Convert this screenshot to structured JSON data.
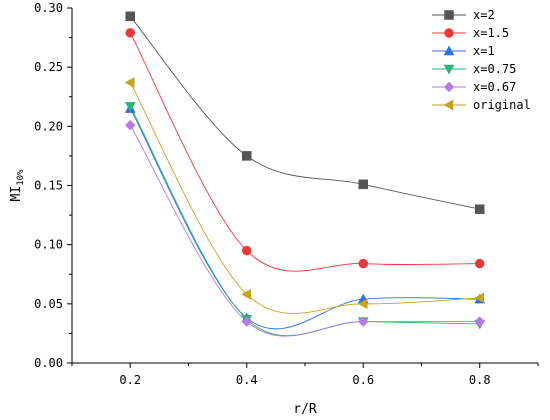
{
  "chart_data": {
    "type": "line",
    "xlabel": "r/R",
    "ylabel_main": "MI",
    "ylabel_sub": "10%",
    "x_ticks": [
      "0.2",
      "0.4",
      "0.6",
      "0.8"
    ],
    "y_ticks": [
      "0.00",
      "0.05",
      "0.10",
      "0.15",
      "0.20",
      "0.25",
      "0.30"
    ],
    "xlim": [
      0.1,
      0.9
    ],
    "ylim": [
      0.0,
      0.3
    ],
    "grid": false,
    "legend_position": "top-right",
    "x": [
      0.2,
      0.4,
      0.6,
      0.8
    ],
    "series": [
      {
        "name": "x=2",
        "marker": "square",
        "color": "#555555",
        "values": [
          0.293,
          0.175,
          0.151,
          0.13
        ]
      },
      {
        "name": "x=1.5",
        "marker": "circle",
        "color": "#e8393a",
        "values": [
          0.279,
          0.095,
          0.084,
          0.084
        ]
      },
      {
        "name": "x=1",
        "marker": "triangle-up",
        "color": "#2f6fd6",
        "values": [
          0.215,
          0.038,
          0.054,
          0.054
        ]
      },
      {
        "name": "x=0.75",
        "marker": "triangle-down",
        "color": "#2ab27f",
        "values": [
          0.217,
          0.037,
          0.035,
          0.033
        ]
      },
      {
        "name": "x=0.67",
        "marker": "diamond",
        "color": "#b57be0",
        "values": [
          0.201,
          0.035,
          0.035,
          0.035
        ]
      },
      {
        "name": "original",
        "marker": "triangle-left",
        "color": "#c9a21a",
        "values": [
          0.237,
          0.058,
          0.05,
          0.055
        ]
      }
    ]
  }
}
